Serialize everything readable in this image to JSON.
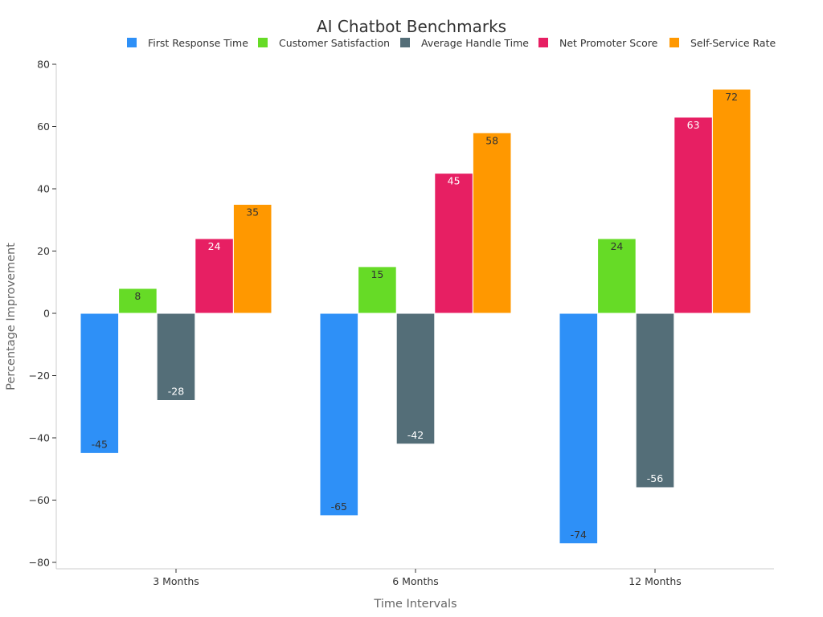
{
  "chart_data": {
    "type": "bar",
    "title": "AI Chatbot Benchmarks",
    "xlabel": "Time Intervals",
    "ylabel": "Percentage Improvement",
    "categories": [
      "3 Months",
      "6 Months",
      "12 Months"
    ],
    "ylim": [
      -80,
      80
    ],
    "yticks": [
      80,
      60,
      40,
      20,
      0,
      -20,
      -40,
      -60,
      -80
    ],
    "ytick_labels": [
      "80",
      "60",
      "40",
      "20",
      "0",
      "−20",
      "−40",
      "−60",
      "−80"
    ],
    "grid": false,
    "legend_position": "top-right",
    "series": [
      {
        "name": "First Response Time",
        "color": "#2E90F7",
        "values": [
          -45,
          -65,
          -74
        ]
      },
      {
        "name": "Customer Satisfaction",
        "color": "#66DB26",
        "values": [
          8,
          15,
          24
        ]
      },
      {
        "name": "Average Handle Time",
        "color": "#546E78",
        "values": [
          -28,
          -42,
          -56
        ]
      },
      {
        "name": "Net Promoter Score",
        "color": "#E71F63",
        "values": [
          24,
          45,
          63
        ]
      },
      {
        "name": "Self-Service Rate",
        "color": "#FF9800",
        "values": [
          35,
          58,
          72
        ]
      }
    ]
  }
}
